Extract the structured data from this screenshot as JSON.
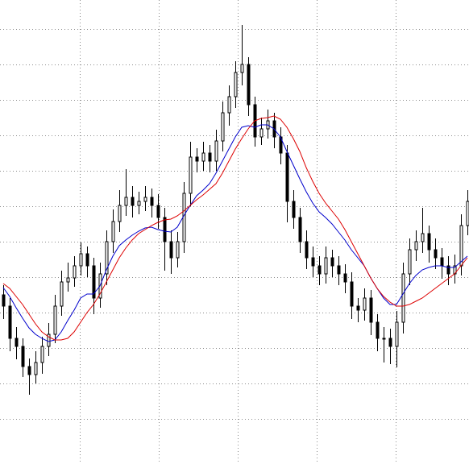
{
  "chart_data": {
    "type": "candlestick",
    "grid": true,
    "grid_color": "#8c8c8c",
    "candle_color": "#000000",
    "up_fill": "#ffffff",
    "xlim": [
      -0.5,
      72.25
    ],
    "ylim": [
      0,
      576
    ],
    "xticks": [
      11.875,
      24.125,
      36.375,
      48.625,
      60.875
    ],
    "yticks": [
      56,
      100,
      144,
      188,
      232,
      276,
      320,
      364,
      408,
      452,
      496,
      540
    ],
    "x": [
      0,
      1,
      2,
      3,
      4,
      5,
      6,
      7,
      8,
      9,
      10,
      11,
      12,
      13,
      14,
      15,
      16,
      17,
      18,
      19,
      20,
      21,
      22,
      23,
      24,
      25,
      26,
      27,
      28,
      29,
      30,
      31,
      32,
      33,
      34,
      35,
      36,
      37,
      38,
      39,
      40,
      41,
      42,
      43,
      44,
      45,
      46,
      47,
      48,
      49,
      50,
      51,
      52,
      53,
      54,
      55,
      56,
      57,
      58,
      59,
      60,
      61,
      62,
      63,
      64,
      65,
      66,
      67,
      68,
      69,
      70,
      71,
      72
    ],
    "open": [
      210,
      196,
      156,
      146,
      121,
      111,
      126,
      146,
      161,
      196,
      226,
      231,
      246,
      261,
      246,
      206,
      236,
      276,
      301,
      321,
      331,
      321,
      326,
      331,
      321,
      306,
      276,
      256,
      276,
      336,
      381,
      376,
      386,
      376,
      401,
      436,
      456,
      486,
      496,
      446,
      406,
      416,
      426,
      406,
      386,
      326,
      306,
      276,
      256,
      246,
      236,
      256,
      246,
      236,
      226,
      196,
      191,
      206,
      176,
      156,
      156,
      146,
      176,
      236,
      266,
      276,
      286,
      266,
      256,
      246,
      236,
      246,
      296
    ],
    "high": [
      222,
      206,
      170,
      156,
      131,
      140,
      158,
      175,
      210,
      240,
      250,
      258,
      275,
      270,
      256,
      250,
      290,
      316,
      340,
      366,
      345,
      338,
      345,
      342,
      335,
      318,
      290,
      288,
      350,
      400,
      392,
      400,
      396,
      415,
      450,
      470,
      500,
      545,
      505,
      456,
      430,
      440,
      436,
      418,
      396,
      340,
      318,
      290,
      270,
      258,
      270,
      266,
      258,
      248,
      238,
      206,
      218,
      216,
      186,
      170,
      168,
      190,
      250,
      280,
      290,
      318,
      296,
      280,
      268,
      258,
      260,
      310,
      340
    ],
    "low": [
      180,
      140,
      130,
      108,
      86,
      100,
      112,
      134,
      150,
      184,
      214,
      220,
      234,
      232,
      186,
      194,
      222,
      262,
      288,
      308,
      306,
      310,
      314,
      306,
      292,
      240,
      236,
      244,
      262,
      320,
      362,
      364,
      362,
      364,
      388,
      420,
      442,
      470,
      432,
      394,
      396,
      404,
      392,
      372,
      300,
      292,
      262,
      242,
      232,
      222,
      224,
      232,
      222,
      212,
      180,
      176,
      178,
      160,
      140,
      126,
      124,
      120,
      162,
      222,
      252,
      262,
      250,
      242,
      230,
      222,
      224,
      234,
      284
    ],
    "close": [
      196,
      156,
      146,
      121,
      111,
      126,
      146,
      161,
      196,
      226,
      231,
      246,
      261,
      246,
      206,
      236,
      276,
      301,
      321,
      331,
      321,
      326,
      331,
      321,
      306,
      276,
      256,
      276,
      336,
      381,
      376,
      386,
      376,
      401,
      436,
      456,
      486,
      496,
      446,
      406,
      416,
      426,
      406,
      386,
      326,
      306,
      276,
      256,
      246,
      236,
      256,
      246,
      236,
      226,
      196,
      191,
      206,
      176,
      156,
      156,
      146,
      176,
      236,
      266,
      276,
      286,
      266,
      256,
      246,
      236,
      246,
      296,
      326
    ],
    "overlays": [
      {
        "color": "#0000cc",
        "values": [
          219,
          208,
          194,
          181,
          169,
          161,
          156,
          152,
          154,
          164,
          178,
          191,
          206,
          211,
          211,
          221,
          241,
          258,
          271,
          278,
          284,
          289,
          293,
          294,
          291,
          289,
          288,
          294,
          308,
          321,
          333,
          340,
          348,
          361,
          376,
          391,
          406,
          418,
          420,
          418,
          421,
          421,
          416,
          406,
          388,
          371,
          354,
          338,
          324,
          313,
          306,
          298,
          288,
          278,
          266,
          256,
          246,
          231,
          218,
          206,
          198,
          198,
          211,
          224,
          234,
          241,
          244,
          246,
          246,
          244,
          244,
          251,
          258
        ]
      },
      {
        "color": "#dd0000",
        "values": [
          224,
          218,
          208,
          198,
          186,
          174,
          164,
          158,
          154,
          154,
          156,
          164,
          176,
          188,
          198,
          211,
          226,
          241,
          256,
          268,
          278,
          286,
          291,
          296,
          300,
          303,
          304,
          308,
          314,
          321,
          328,
          334,
          341,
          348,
          361,
          376,
          391,
          404,
          416,
          426,
          429,
          430,
          432,
          428,
          418,
          404,
          388,
          368,
          351,
          336,
          324,
          314,
          304,
          291,
          276,
          261,
          246,
          231,
          218,
          208,
          201,
          196,
          196,
          198,
          202,
          206,
          212,
          218,
          224,
          230,
          236,
          246,
          256
        ]
      }
    ]
  }
}
